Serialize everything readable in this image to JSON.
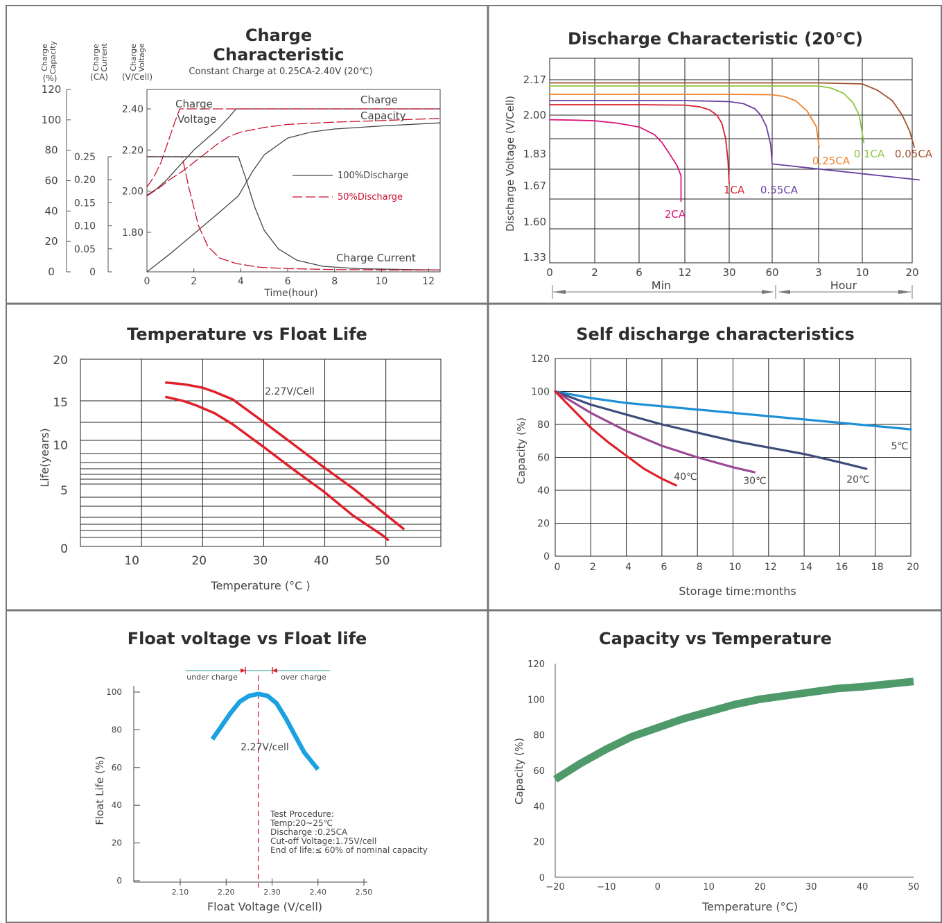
{
  "panels": {
    "charge": {
      "title": "Charge Characteristic",
      "subtitle": "Constant Charge at 0.25CA-2.40V  (20℃)",
      "axis_heads": {
        "capacity": [
          "Charge",
          "Capacity"
        ],
        "current": [
          "Charge",
          "Current"
        ],
        "voltage": [
          "Charge",
          "Voltage"
        ],
        "capacity_unit": "(%)",
        "current_unit": "(CA)",
        "voltage_unit": "(V/Cell)"
      },
      "xlabel": "Time(hour)",
      "labels": {
        "charge_voltage_1": "Charge",
        "charge_voltage_2": "Voltage",
        "charge_capacity_1": "Charge",
        "charge_capacity_2": "Capacity",
        "charge_current": "Charge Current",
        "legend_100": "100%Discharge",
        "legend_50": "50%Discharge"
      },
      "colors": {
        "solid": "#444444",
        "dashed": "#c8102e"
      }
    },
    "discharge": {
      "title": "Discharge Characteristic (20°C)",
      "ylabel": "Discharge Voltage (V/Cell)",
      "xgroup_min": "Min",
      "xgroup_hour": "Hour"
    },
    "temp_life": {
      "title": "Temperature vs Float Life",
      "ylabel": "Life(years)",
      "xlabel": "Temperature (°C )",
      "annotation": "2.27V/Cell",
      "line_color": "#e0202a"
    },
    "self_discharge": {
      "title": "Self discharge characteristics",
      "ylabel": "Capacity (%)",
      "xlabel": "Storage time:months"
    },
    "float_voltage": {
      "title": "Float voltage vs Float life",
      "ylabel": "Float Life (%)",
      "xlabel": "Float Voltage (V/cell)",
      "under_charge": "under charge",
      "over_charge": "over charge",
      "peak_label": "2.27V/cell",
      "procedure": [
        "Test Procedure:",
        "Temp:20~25℃",
        "Discharge :0.25CA",
        "Cut-off Voltage:1.75V/cell",
        "End of life:≤ 60% of nominal capacity"
      ],
      "line_color": "#1ba1e2",
      "marker_color": "#e0202a"
    },
    "cap_temp": {
      "title": "Capacity vs Temperature",
      "ylabel": "Capacity (%)",
      "xlabel": "Temperature (°C)",
      "line_color": "#4e9a6a"
    }
  },
  "chart_data": [
    {
      "type": "line",
      "title": "Charge Characteristic",
      "subtitle": "Constant Charge at 0.25CA-2.40V  (20℃)",
      "xlabel": "Time(hour)",
      "x_ticks": [
        0,
        2,
        4,
        6,
        8,
        10,
        12
      ],
      "xlim": [
        0,
        12.5
      ],
      "y_axes": [
        {
          "name": "Charge Capacity (%)",
          "ticks": [
            0,
            20,
            40,
            60,
            80,
            100,
            120
          ],
          "lim": [
            0,
            120
          ]
        },
        {
          "name": "Charge Current (CA)",
          "ticks": [
            0,
            0.05,
            0.1,
            0.15,
            0.2,
            0.25
          ],
          "tick_labels": [
            "0",
            "0.05",
            "0.10",
            "0.15",
            "0.20",
            "0.25"
          ],
          "lim": [
            0,
            0.25
          ]
        },
        {
          "name": "Charge Voltage (V/Cell)",
          "ticks": [
            1.8,
            2.0,
            2.2,
            2.4
          ],
          "tick_labels": [
            "1.80",
            "2.00",
            "2.20",
            "2.40"
          ],
          "lim": [
            1.6,
            2.4
          ]
        }
      ],
      "series": [
        {
          "name": "100%Discharge",
          "quantity": "Charge Voltage",
          "axis": 2,
          "style": "solid",
          "x": [
            0,
            0.4,
            0.8,
            1.2,
            1.6,
            2.0,
            2.5,
            3.0,
            3.5,
            3.8,
            4.2,
            6,
            8,
            10,
            12,
            12.5
          ],
          "y": [
            1.98,
            2.01,
            2.05,
            2.1,
            2.15,
            2.2,
            2.25,
            2.3,
            2.36,
            2.4,
            2.4,
            2.4,
            2.4,
            2.4,
            2.4,
            2.4
          ]
        },
        {
          "name": "100%Discharge",
          "quantity": "Charge Current",
          "axis": 1,
          "style": "solid",
          "x": [
            0,
            3.9,
            4.2,
            4.6,
            5.0,
            5.6,
            6.4,
            7.5,
            9,
            11,
            12.5
          ],
          "y": [
            0.25,
            0.25,
            0.205,
            0.14,
            0.09,
            0.05,
            0.025,
            0.012,
            0.007,
            0.005,
            0.004
          ]
        },
        {
          "name": "100%Discharge",
          "quantity": "Charge Capacity",
          "axis": 0,
          "style": "solid",
          "x": [
            0,
            1,
            2,
            3,
            3.9,
            4.5,
            5,
            6,
            7,
            8,
            10,
            12.5
          ],
          "y": [
            0,
            12,
            25,
            38,
            50,
            66,
            77,
            88,
            92,
            94,
            96,
            98
          ]
        },
        {
          "name": "50%Discharge",
          "quantity": "Charge Voltage",
          "axis": 2,
          "style": "dashed",
          "x": [
            0,
            0.3,
            0.6,
            0.9,
            1.2,
            1.4,
            1.6,
            12.5
          ],
          "y": [
            2.02,
            2.07,
            2.14,
            2.24,
            2.34,
            2.4,
            2.4,
            2.4
          ]
        },
        {
          "name": "50%Discharge",
          "quantity": "Charge Current",
          "axis": 1,
          "style": "dashed",
          "x": [
            0,
            1.5,
            1.8,
            2.2,
            2.6,
            3.1,
            3.8,
            4.8,
            6,
            8,
            10,
            12.5
          ],
          "y": [
            0.25,
            0.25,
            0.18,
            0.1,
            0.055,
            0.03,
            0.018,
            0.01,
            0.007,
            0.005,
            0.004,
            0.004
          ]
        },
        {
          "name": "50%Discharge",
          "quantity": "Charge Capacity",
          "axis": 0,
          "style": "dashed",
          "x": [
            0,
            0.5,
            1.0,
            1.5,
            2.0,
            2.5,
            3.0,
            3.5,
            4,
            5,
            6,
            8,
            10,
            12.5
          ],
          "y": [
            50,
            55,
            61,
            66,
            72,
            78,
            84,
            89,
            92,
            95,
            97,
            98.5,
            99.5,
            101
          ]
        }
      ]
    },
    {
      "type": "line",
      "title": "Discharge Characteristic (20°C)",
      "ylabel": "Discharge Voltage (V/Cell)",
      "y_ticks": [
        1.33,
        1.6,
        1.67,
        1.83,
        2.0,
        2.17
      ],
      "y_tick_labels": [
        "1.33",
        "1.60",
        "1.67",
        "1.83",
        "2.00",
        "2.17"
      ],
      "x_ticks": [
        "0",
        "2",
        "6",
        "12",
        "30",
        "60",
        "3",
        "10",
        "20"
      ],
      "x_groups": [
        {
          "label": "Min",
          "from": "0",
          "to": "60"
        },
        {
          "label": "Hour",
          "from": "60",
          "to": "20"
        }
      ],
      "series": [
        {
          "name": "2CA",
          "color": "#d6157b",
          "x": [
            "0",
            "1",
            "2",
            "4",
            "6",
            "8",
            "9",
            "10",
            "11",
            "11.5",
            "11.5"
          ],
          "y": [
            1.98,
            1.978,
            1.975,
            1.965,
            1.948,
            1.915,
            1.88,
            1.83,
            1.77,
            1.72,
            1.64
          ]
        },
        {
          "name": "1CA",
          "color": "#d61e2c",
          "x": [
            "0",
            "6",
            "12",
            "18",
            "22",
            "25",
            "27",
            "28.5",
            "29.5",
            "30"
          ],
          "y": [
            2.05,
            2.05,
            2.048,
            2.04,
            2.025,
            2.0,
            1.965,
            1.9,
            1.8,
            1.68
          ]
        },
        {
          "name": "0.55CA",
          "color": "#6a3fa0",
          "x": [
            "0",
            "6",
            "12",
            "30",
            "40",
            "48",
            "52",
            "56",
            "59",
            "60",
            "60"
          ],
          "y": [
            2.07,
            2.07,
            2.07,
            2.065,
            2.055,
            2.03,
            2.0,
            1.95,
            1.87,
            1.78,
            1.7
          ]
        },
        {
          "name": "0.25CA",
          "color": "#f0812a",
          "x": [
            "0",
            "6",
            "30",
            "60",
            "1.5",
            "2",
            "2.5",
            "2.9",
            "3.1"
          ],
          "y": [
            2.1,
            2.1,
            2.1,
            2.098,
            2.09,
            2.07,
            2.02,
            1.95,
            1.86
          ]
        },
        {
          "name": "0.1CA",
          "color": "#8dc63f",
          "x": [
            "0",
            "30",
            "60",
            "3",
            "5",
            "7",
            "8.5",
            "9.5",
            "10.3"
          ],
          "y": [
            2.14,
            2.14,
            2.14,
            2.14,
            2.13,
            2.105,
            2.06,
            2.0,
            1.88
          ]
        },
        {
          "name": "0.05CA",
          "color": "#a0522d",
          "x": [
            "0",
            "60",
            "3",
            "10",
            "13",
            "16",
            "18",
            "19.5",
            "20.3"
          ],
          "y": [
            2.155,
            2.155,
            2.155,
            2.15,
            2.12,
            2.07,
            2.0,
            1.93,
            1.86
          ]
        }
      ]
    },
    {
      "type": "line",
      "title": "Temperature vs Float Life",
      "xlabel": "Temperature (°C )",
      "ylabel": "Life(years)",
      "x_ticks": [
        10,
        20,
        30,
        40,
        50
      ],
      "y_ticks": [
        0,
        5,
        10,
        15,
        20
      ],
      "xlim": [
        0,
        59
      ],
      "ylim": [
        0,
        20
      ],
      "annotation": "2.27V/Cell",
      "series": [
        {
          "x": [
            14,
            17,
            20,
            22,
            25,
            30,
            35,
            40,
            45,
            50,
            53.2
          ],
          "y": [
            17.4,
            17.2,
            16.8,
            16.3,
            15.4,
            12.8,
            10.2,
            7.7,
            5.3,
            3.1,
            1.6
          ]
        },
        {
          "x": [
            14,
            17,
            19,
            22,
            25,
            30,
            35,
            40,
            45,
            50,
            50.8
          ],
          "y": [
            15.7,
            15.2,
            14.7,
            13.8,
            12.5,
            9.9,
            7.4,
            5.0,
            2.8,
            1.0,
            0.6
          ]
        }
      ]
    },
    {
      "type": "line",
      "title": "Self discharge characteristics",
      "xlabel": "Storage time:months",
      "ylabel": "Capacity (%)",
      "x_ticks": [
        0,
        2,
        4,
        6,
        8,
        10,
        12,
        14,
        16,
        18,
        20
      ],
      "y_ticks": [
        0,
        20,
        40,
        60,
        80,
        100,
        120
      ],
      "xlim": [
        0,
        20
      ],
      "ylim": [
        0,
        120
      ],
      "series": [
        {
          "name": "5℃",
          "color": "#1e90d6",
          "x": [
            0,
            2,
            4,
            8,
            12,
            16,
            20
          ],
          "y": [
            100,
            96,
            93,
            89,
            85,
            81,
            77
          ]
        },
        {
          "name": "20℃",
          "color": "#3d4c7a",
          "x": [
            0,
            2,
            4,
            6,
            8,
            10,
            12,
            14,
            16,
            17.5
          ],
          "y": [
            100,
            92,
            86,
            80,
            75,
            70,
            66,
            62,
            57,
            53
          ]
        },
        {
          "name": "30℃",
          "color": "#9b4a96",
          "x": [
            0,
            2,
            4,
            6,
            8,
            10,
            11.2
          ],
          "y": [
            100,
            87,
            76,
            67,
            60,
            54,
            51
          ]
        },
        {
          "name": "40℃",
          "color": "#e0202a",
          "x": [
            0,
            1,
            2,
            3,
            4,
            5,
            6,
            6.8
          ],
          "y": [
            100,
            89,
            78,
            69,
            61,
            53,
            47,
            43
          ]
        }
      ]
    },
    {
      "type": "line",
      "title": "Float voltage vs Float life",
      "xlabel": "Float Voltage (V/cell)",
      "ylabel": "Float Life (%)",
      "x_ticks": [
        2.1,
        2.2,
        2.3,
        2.4,
        2.5
      ],
      "x_tick_labels": [
        "2.10",
        "2.20",
        "2.30",
        "2.40",
        "2.50"
      ],
      "y_ticks": [
        0,
        20,
        40,
        60,
        80,
        100
      ],
      "xlim": [
        2.0,
        2.5
      ],
      "ylim": [
        0,
        100
      ],
      "series": [
        {
          "x": [
            2.17,
            2.19,
            2.21,
            2.23,
            2.25,
            2.27,
            2.29,
            2.31,
            2.33,
            2.35,
            2.37,
            2.4
          ],
          "y": [
            75,
            82,
            89,
            95,
            98,
            99,
            98,
            94,
            86,
            77,
            68,
            59
          ]
        }
      ]
    },
    {
      "type": "line",
      "title": "Capacity vs Temperature",
      "xlabel": "Temperature (°C)",
      "ylabel": "Capacity (%)",
      "x_ticks": [
        -20,
        -10,
        0,
        10,
        20,
        30,
        40,
        50
      ],
      "x_tick_labels": [
        "−20",
        "−10",
        "0",
        "10",
        "20",
        "30",
        "40",
        "50"
      ],
      "y_ticks": [
        0,
        20,
        40,
        60,
        80,
        100,
        120
      ],
      "xlim": [
        -20,
        50
      ],
      "ylim": [
        0,
        120
      ],
      "series": [
        {
          "x": [
            -20,
            -15,
            -10,
            -5,
            0,
            5,
            10,
            15,
            20,
            25,
            30,
            35,
            40,
            45,
            50
          ],
          "y": [
            55,
            64,
            72,
            79,
            84,
            89,
            93,
            97,
            100,
            102,
            104,
            106,
            107,
            108.5,
            110
          ]
        }
      ]
    }
  ]
}
